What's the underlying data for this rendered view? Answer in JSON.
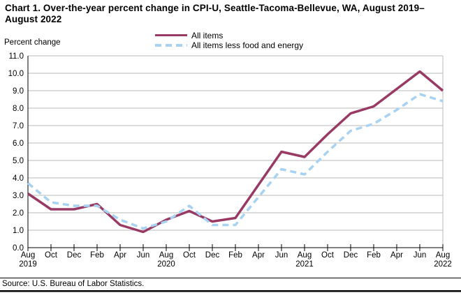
{
  "title": "Chart 1. Over-the-year percent change in CPI-U, Seattle-Tacoma-Bellevue, WA, August 2019–August 2022",
  "y_axis_unit_label": "Percent change",
  "source": "Source: U.S. Bureau of Labor Statistics.",
  "colors": {
    "all_items_line": "#993a64",
    "core_line": "#a8d2f2",
    "gridline": "#b9b9b9",
    "axis": "#000000"
  },
  "legend": {
    "items": [
      {
        "label": "All items",
        "swatch": "solid-maroon-line"
      },
      {
        "label": "All items less food and energy",
        "swatch": "dashed-lightblue-line"
      }
    ]
  },
  "chart_data": {
    "type": "line",
    "title": "Chart 1. Over-the-year percent change in CPI-U, Seattle-Tacoma-Bellevue, WA, August 2019–August 2022",
    "ylabel": "Percent change",
    "ylim": [
      0,
      11
    ],
    "ytick_step": 1.0,
    "grid": true,
    "legend_position": "top-center",
    "categories": [
      "Aug",
      "Oct",
      "Dec",
      "Feb",
      "Apr",
      "Jun",
      "Aug",
      "Oct",
      "Dec",
      "Feb",
      "Apr",
      "Jun",
      "Aug",
      "Oct",
      "Dec",
      "Feb",
      "Apr",
      "Jun",
      "Aug"
    ],
    "year_labels": {
      "0": "2019",
      "6": "2020",
      "12": "2021",
      "18": "2022"
    },
    "series": [
      {
        "name": "All items",
        "color": "#993a64",
        "dash": "solid",
        "values": [
          3.1,
          2.2,
          2.2,
          2.5,
          1.3,
          0.9,
          1.6,
          2.1,
          1.5,
          1.7,
          3.6,
          5.5,
          5.2,
          6.5,
          7.7,
          8.1,
          9.1,
          10.1,
          9.0
        ]
      },
      {
        "name": "All items less food and energy",
        "color": "#a8d2f2",
        "dash": "dashed",
        "values": [
          3.7,
          2.6,
          2.4,
          2.4,
          1.6,
          1.1,
          1.5,
          2.4,
          1.3,
          1.3,
          2.9,
          4.5,
          4.2,
          5.5,
          6.7,
          7.1,
          7.9,
          8.8,
          8.4
        ]
      }
    ]
  }
}
